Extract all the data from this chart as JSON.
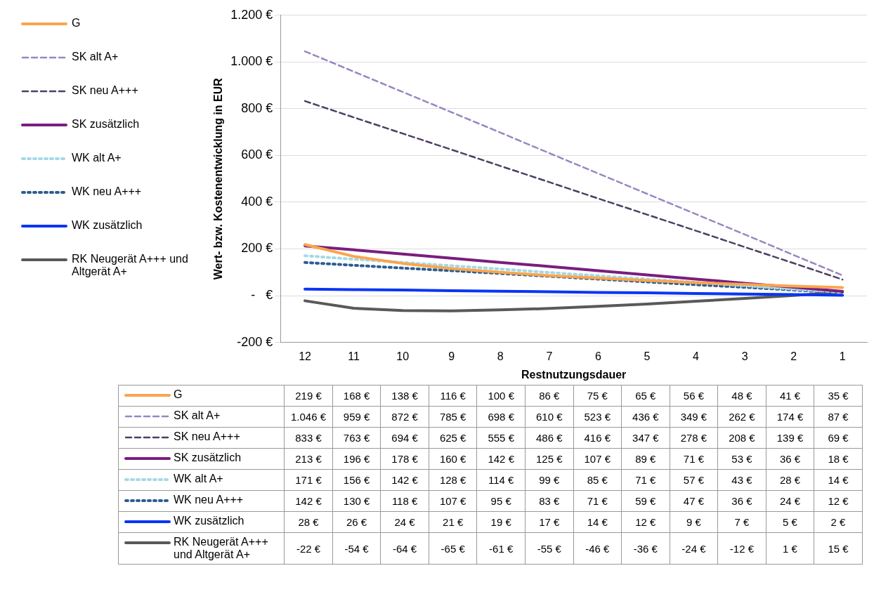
{
  "chart_data": {
    "type": "line",
    "ylabel": "Wert- bzw. Kostenentwicklung in EUR",
    "xlabel": "Restnutzungsdauer",
    "categories": [
      "12",
      "11",
      "10",
      "9",
      "8",
      "7",
      "6",
      "5",
      "4",
      "3",
      "2",
      "1"
    ],
    "ylim": [
      -200,
      1200
    ],
    "yticks": [
      {
        "value": -200,
        "label": "-200 €"
      },
      {
        "value": 0,
        "label": "-   €"
      },
      {
        "value": 200,
        "label": "200 €"
      },
      {
        "value": 400,
        "label": "400 €"
      },
      {
        "value": 600,
        "label": "600 €"
      },
      {
        "value": 800,
        "label": "800 €"
      },
      {
        "value": 1000,
        "label": "1.000 €"
      },
      {
        "value": 1200,
        "label": "1.200 €"
      }
    ],
    "grid": "y",
    "legend": "left",
    "marker": "none",
    "series": [
      {
        "name": "G",
        "color": "#f9a54e",
        "line_style": "solid",
        "values": [
          219,
          168,
          138,
          116,
          100,
          86,
          75,
          65,
          56,
          48,
          41,
          35
        ],
        "value_labels": [
          "219 €",
          "168 €",
          "138 €",
          "116 €",
          "100 €",
          "86 €",
          "75 €",
          "65 €",
          "56 €",
          "48 €",
          "41 €",
          "35 €"
        ]
      },
      {
        "name": "SK alt A+",
        "color": "#9a86c2",
        "line_style": "dashed",
        "values": [
          1046,
          959,
          872,
          785,
          698,
          610,
          523,
          436,
          349,
          262,
          174,
          87
        ],
        "value_labels": [
          "1.046 €",
          "959 €",
          "872 €",
          "785 €",
          "698 €",
          "610 €",
          "523 €",
          "436 €",
          "349 €",
          "262 €",
          "174 €",
          "87 €"
        ]
      },
      {
        "name": "SK neu A+++",
        "color": "#4e3f64",
        "line_style": "dashed",
        "values": [
          833,
          763,
          694,
          625,
          555,
          486,
          416,
          347,
          278,
          208,
          139,
          69
        ],
        "value_labels": [
          "833 €",
          "763 €",
          "694 €",
          "625 €",
          "555 €",
          "486 €",
          "416 €",
          "347 €",
          "278 €",
          "208 €",
          "139 €",
          "69 €"
        ]
      },
      {
        "name": "SK zusätzlich",
        "color": "#7a1d7e",
        "line_style": "solid",
        "values": [
          213,
          196,
          178,
          160,
          142,
          125,
          107,
          89,
          71,
          53,
          36,
          18
        ],
        "value_labels": [
          "213 €",
          "196 €",
          "178 €",
          "160 €",
          "142 €",
          "125 €",
          "107 €",
          "89 €",
          "71 €",
          "53 €",
          "36 €",
          "18 €"
        ]
      },
      {
        "name": "WK alt A+",
        "color": "#a6d8e6",
        "line_style": "dotted",
        "values": [
          171,
          156,
          142,
          128,
          114,
          99,
          85,
          71,
          57,
          43,
          28,
          14
        ],
        "value_labels": [
          "171 €",
          "156 €",
          "142 €",
          "128 €",
          "114 €",
          "99 €",
          "85 €",
          "71 €",
          "57 €",
          "43 €",
          "28 €",
          "14 €"
        ]
      },
      {
        "name": "WK neu A+++",
        "color": "#2c5d8f",
        "line_style": "dotted",
        "values": [
          142,
          130,
          118,
          107,
          95,
          83,
          71,
          59,
          47,
          36,
          24,
          12
        ],
        "value_labels": [
          "142 €",
          "130 €",
          "118 €",
          "107 €",
          "95 €",
          "83 €",
          "71 €",
          "59 €",
          "47 €",
          "36 €",
          "24 €",
          "12 €"
        ]
      },
      {
        "name": "WK zusätzlich",
        "color": "#0a35f5",
        "line_style": "solid",
        "values": [
          28,
          26,
          24,
          21,
          19,
          17,
          14,
          12,
          9,
          7,
          5,
          2
        ],
        "value_labels": [
          "28 €",
          "26 €",
          "24 €",
          "21 €",
          "19 €",
          "17 €",
          "14 €",
          "12 €",
          "9 €",
          "7 €",
          "5 €",
          "2 €"
        ]
      },
      {
        "name": "RK Neugerät A+++ und Altgerät A+",
        "color": "#595959",
        "line_style": "solid",
        "values": [
          -22,
          -54,
          -64,
          -65,
          -61,
          -55,
          -46,
          -36,
          -24,
          -12,
          1,
          15
        ],
        "value_labels": [
          "-22 €",
          "-54 €",
          "-64 €",
          "-65 €",
          "-61 €",
          "-55 €",
          "-46 €",
          "-36 €",
          "-24 €",
          "-12 €",
          "1 €",
          "15 €"
        ]
      }
    ]
  }
}
